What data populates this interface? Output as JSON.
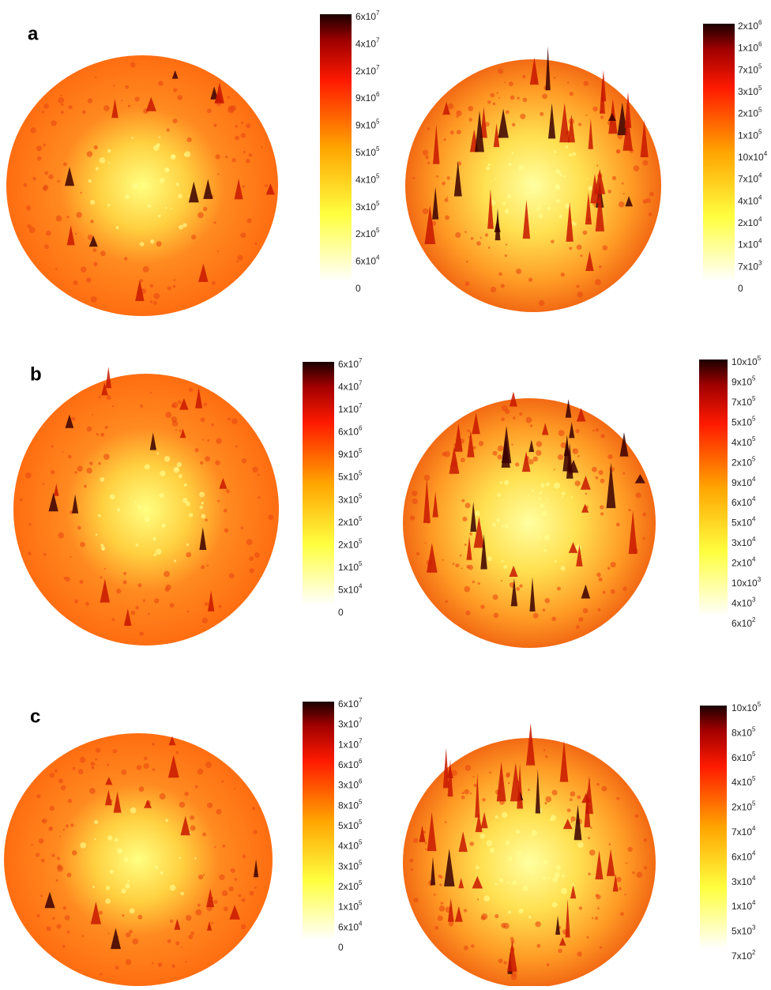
{
  "panels": [
    {
      "letter": "a",
      "left_colorbar": {
        "ticks": [
          {
            "text": "6x10",
            "sup": "7"
          },
          {
            "text": "4x10",
            "sup": "7"
          },
          {
            "text": "2x10",
            "sup": "7"
          },
          {
            "text": "9x10",
            "sup": "6"
          },
          {
            "text": "9x10",
            "sup": "5"
          },
          {
            "text": "5x10",
            "sup": "5"
          },
          {
            "text": "4x10",
            "sup": "5"
          },
          {
            "text": "3x10",
            "sup": "5"
          },
          {
            "text": "2x10",
            "sup": "5"
          },
          {
            "text": "6x10",
            "sup": "4"
          },
          {
            "text": "0"
          }
        ]
      },
      "right_colorbar": {
        "ticks": [
          {
            "text": "2x10",
            "sup": "6"
          },
          {
            "text": "1x10",
            "sup": "6"
          },
          {
            "text": "7x10",
            "sup": "5"
          },
          {
            "text": "3x10",
            "sup": "5"
          },
          {
            "text": "2x10",
            "sup": "5"
          },
          {
            "text": "1x10",
            "sup": "5"
          },
          {
            "text": "10x10",
            "sup": "4"
          },
          {
            "text": "7x10",
            "sup": "4"
          },
          {
            "text": "4x10",
            "sup": "4"
          },
          {
            "text": "2x10",
            "sup": "4"
          },
          {
            "text": "1x10",
            "sup": "4"
          },
          {
            "text": "7x10",
            "sup": "3"
          },
          {
            "text": "0"
          }
        ]
      }
    },
    {
      "letter": "b",
      "left_colorbar": {
        "ticks": [
          {
            "text": "6x10",
            "sup": "7"
          },
          {
            "text": "4x10",
            "sup": "7"
          },
          {
            "text": "1x10",
            "sup": "7"
          },
          {
            "text": "6x10",
            "sup": "6"
          },
          {
            "text": "9x10",
            "sup": "5"
          },
          {
            "text": "5x10",
            "sup": "5"
          },
          {
            "text": "3x10",
            "sup": "5"
          },
          {
            "text": "2x10",
            "sup": "5"
          },
          {
            "text": "2x10",
            "sup": "5"
          },
          {
            "text": "1x10",
            "sup": "5"
          },
          {
            "text": "5x10",
            "sup": "4"
          },
          {
            "text": "0"
          }
        ]
      },
      "right_colorbar": {
        "ticks": [
          {
            "text": "10x10",
            "sup": "5"
          },
          {
            "text": "9x10",
            "sup": "5"
          },
          {
            "text": "7x10",
            "sup": "5"
          },
          {
            "text": "5x10",
            "sup": "5"
          },
          {
            "text": "4x10",
            "sup": "5"
          },
          {
            "text": "2x10",
            "sup": "5"
          },
          {
            "text": "9x10",
            "sup": "4"
          },
          {
            "text": "6x10",
            "sup": "4"
          },
          {
            "text": "5x10",
            "sup": "4"
          },
          {
            "text": "3x10",
            "sup": "4"
          },
          {
            "text": "2x10",
            "sup": "4"
          },
          {
            "text": "10x10",
            "sup": "3"
          },
          {
            "text": "4x10",
            "sup": "3"
          },
          {
            "text": "6x10",
            "sup": "2"
          }
        ]
      }
    },
    {
      "letter": "c",
      "left_colorbar": {
        "ticks": [
          {
            "text": "6x10",
            "sup": "7"
          },
          {
            "text": "3x10",
            "sup": "7"
          },
          {
            "text": "1x10",
            "sup": "7"
          },
          {
            "text": "6x10",
            "sup": "6"
          },
          {
            "text": "3x10",
            "sup": "6"
          },
          {
            "text": "8x10",
            "sup": "5"
          },
          {
            "text": "5x10",
            "sup": "5"
          },
          {
            "text": "4x10",
            "sup": "5"
          },
          {
            "text": "3x10",
            "sup": "5"
          },
          {
            "text": "2x10",
            "sup": "5"
          },
          {
            "text": "1x10",
            "sup": "5"
          },
          {
            "text": "6x10",
            "sup": "4"
          },
          {
            "text": "0"
          }
        ]
      },
      "right_colorbar": {
        "ticks": [
          {
            "text": "10x10",
            "sup": "5"
          },
          {
            "text": "8x10",
            "sup": "5"
          },
          {
            "text": "6x10",
            "sup": "5"
          },
          {
            "text": "4x10",
            "sup": "5"
          },
          {
            "text": "2x10",
            "sup": "5"
          },
          {
            "text": "7x10",
            "sup": "4"
          },
          {
            "text": "6x10",
            "sup": "4"
          },
          {
            "text": "3x10",
            "sup": "4"
          },
          {
            "text": "1x10",
            "sup": "4"
          },
          {
            "text": "5x10",
            "sup": "3"
          },
          {
            "text": "7x10",
            "sup": "2"
          }
        ]
      }
    }
  ]
}
